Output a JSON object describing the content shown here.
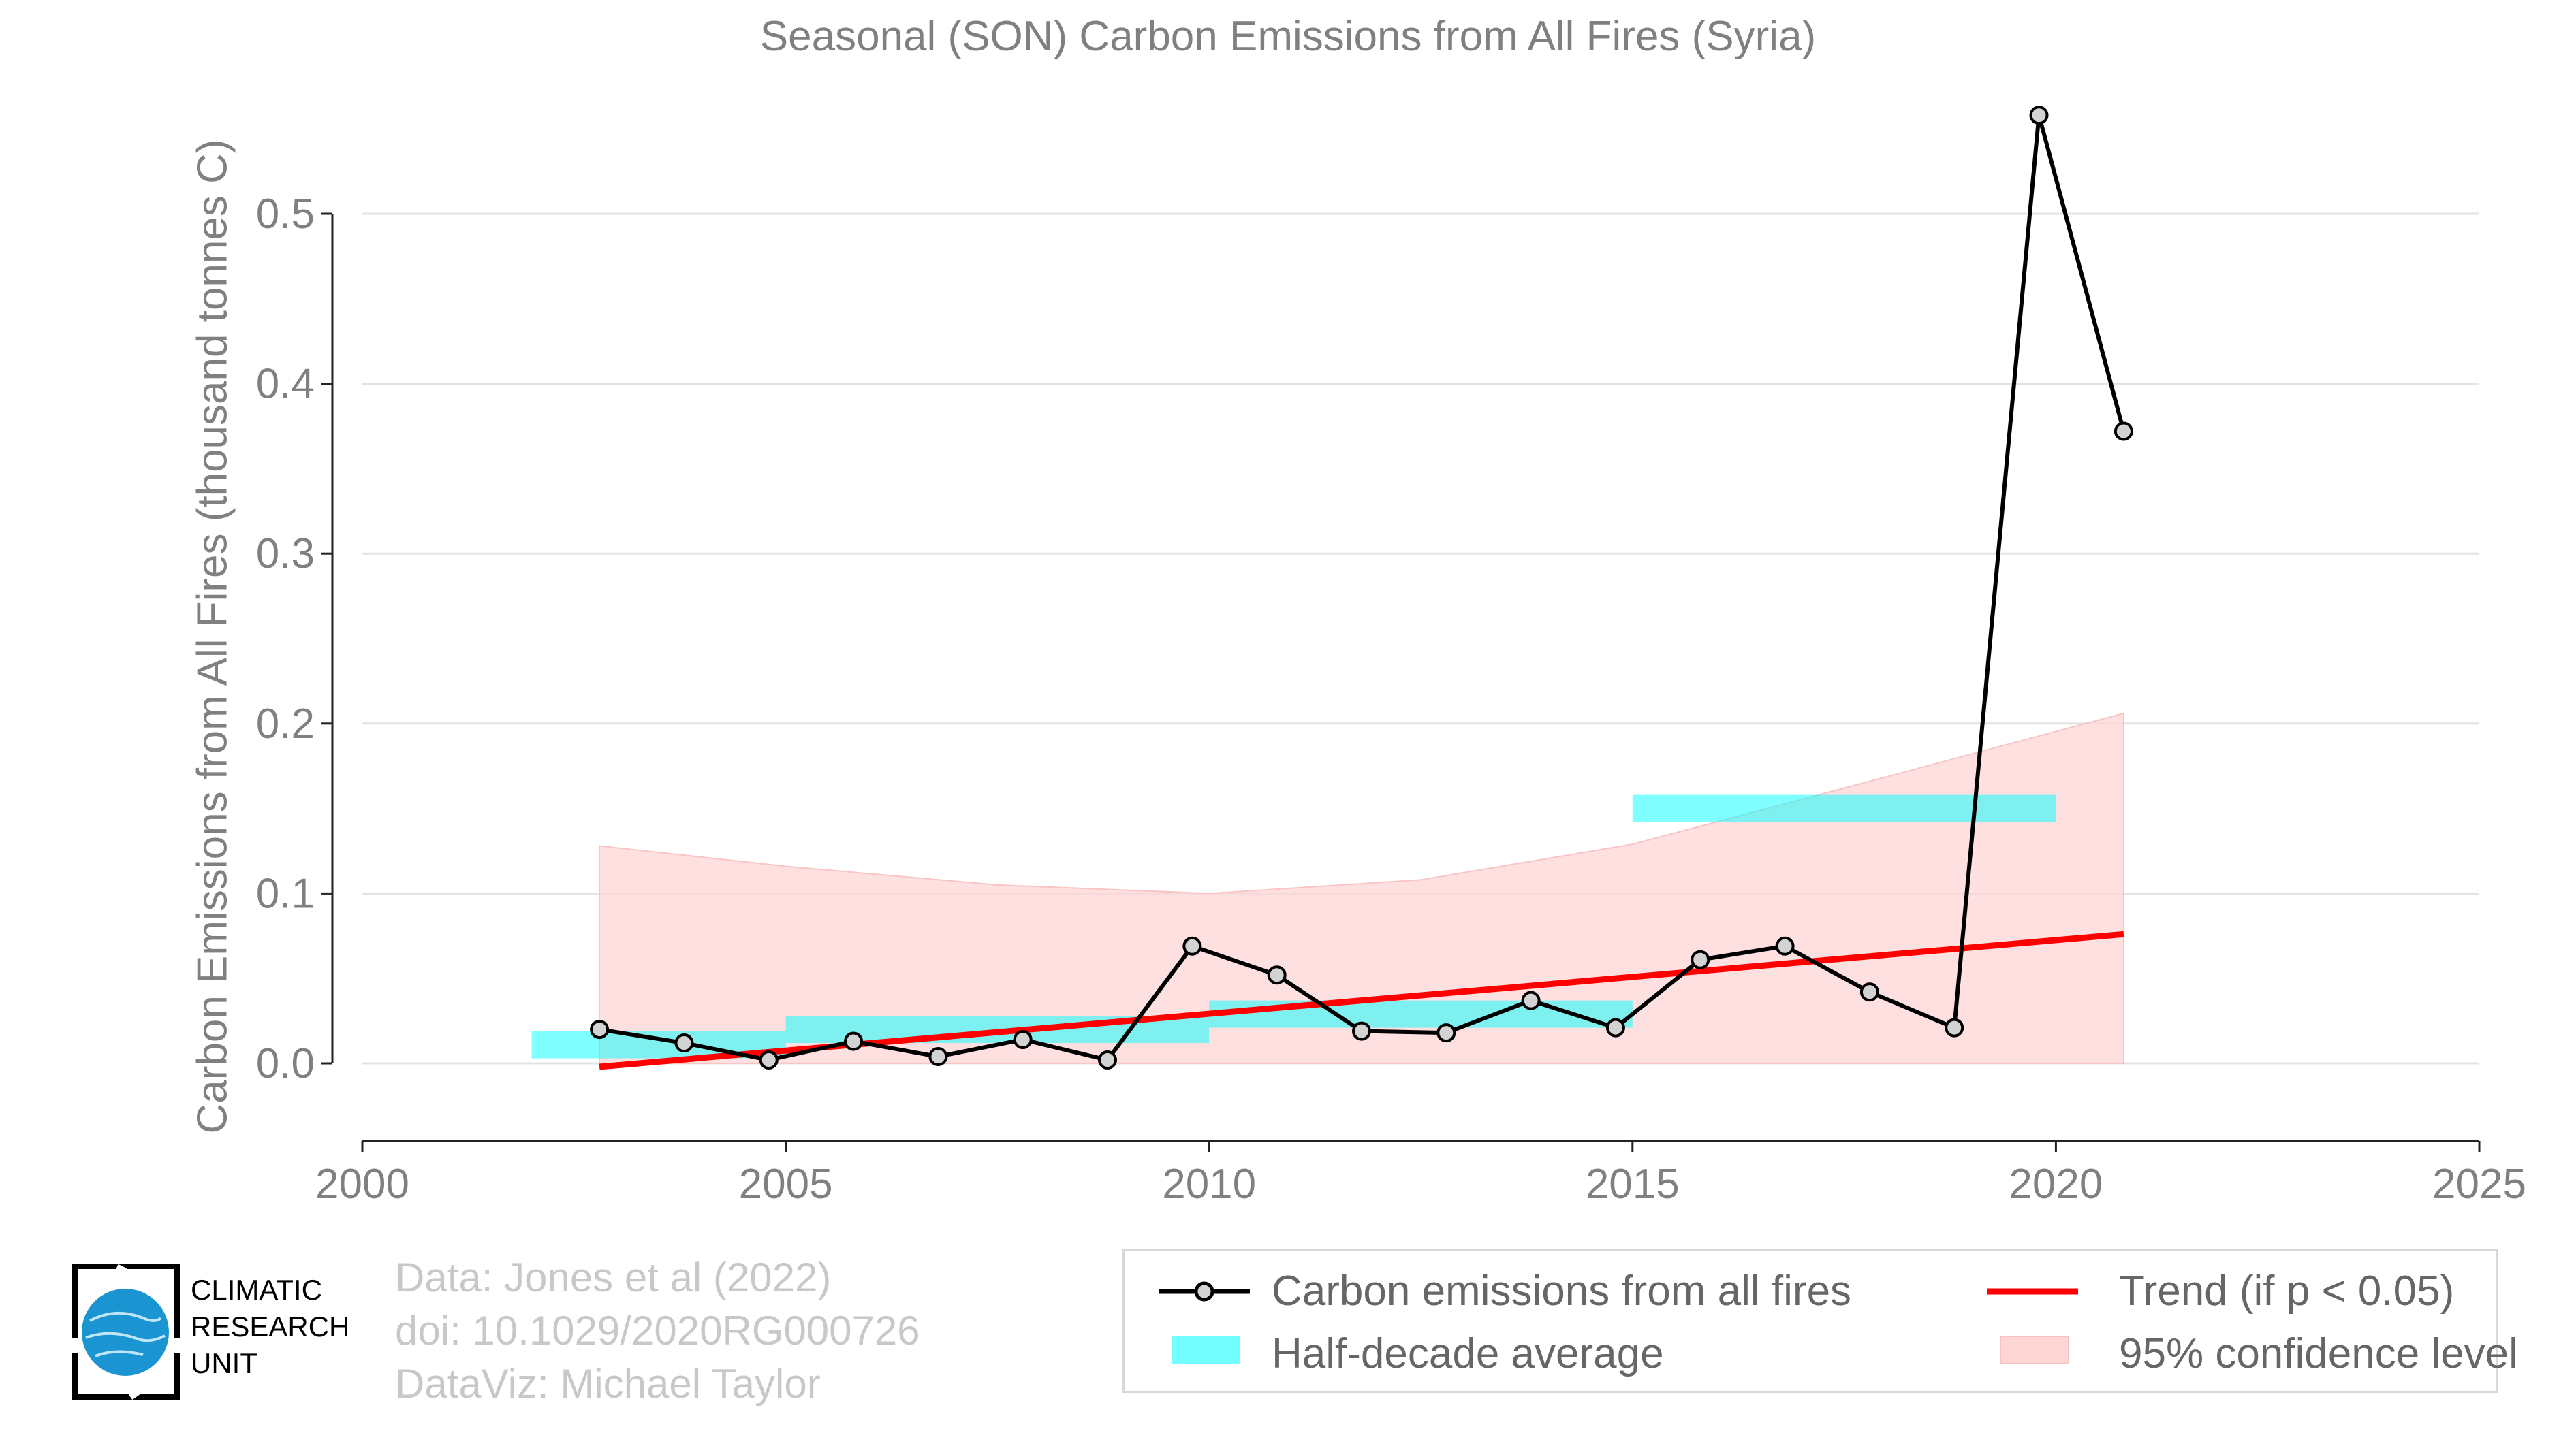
{
  "chart_data": {
    "type": "line",
    "title": "Seasonal (SON) Carbon Emissions from All Fires (Syria)",
    "xlabel": "",
    "ylabel": "Carbon Emissions from All Fires (thousand tonnes C)",
    "xlim": [
      2000,
      2025
    ],
    "ylim": [
      -0.045,
      0.57
    ],
    "xticks": [
      "2000",
      "2005",
      "2010",
      "2015",
      "2020",
      "2025"
    ],
    "yticks": [
      "0.0",
      "0.1",
      "0.2",
      "0.3",
      "0.4",
      "0.5"
    ],
    "grid": "horizontal",
    "series": [
      {
        "name": "Carbon emissions from all fires",
        "color": "#000000",
        "x": [
          2002.8,
          2003.8,
          2004.8,
          2005.8,
          2006.8,
          2007.8,
          2008.8,
          2009.8,
          2010.8,
          2011.8,
          2012.8,
          2013.8,
          2014.8,
          2015.8,
          2016.8,
          2017.8,
          2018.8,
          2019.8,
          2020.8
        ],
        "values": [
          0.02,
          0.012,
          0.002,
          0.013,
          0.004,
          0.014,
          0.002,
          0.069,
          0.052,
          0.019,
          0.018,
          0.037,
          0.021,
          0.061,
          0.069,
          0.042,
          0.021,
          0.558,
          0.372
        ]
      },
      {
        "name": "Half-decade average",
        "color": "#00ffff",
        "segments": [
          {
            "x0": 2002.0,
            "x1": 2005.0,
            "value": 0.011
          },
          {
            "x0": 2005.0,
            "x1": 2010.0,
            "value": 0.02
          },
          {
            "x0": 2010.0,
            "x1": 2015.0,
            "value": 0.029
          },
          {
            "x0": 2015.0,
            "x1": 2020.0,
            "value": 0.15
          }
        ]
      },
      {
        "name": "Trend (if p < 0.05)",
        "color": "#ff0000",
        "x": [
          2002.8,
          2020.8
        ],
        "values": [
          -0.002,
          0.076
        ]
      },
      {
        "name": "95% confidence level",
        "color": "#fdd5d5",
        "x": [
          2002.8,
          2005.0,
          2007.5,
          2010.0,
          2012.5,
          2015.0,
          2017.5,
          2020.8
        ],
        "upper": [
          0.128,
          0.116,
          0.105,
          0.1,
          0.108,
          0.129,
          0.162,
          0.206
        ],
        "lower": [
          0.0,
          0.0,
          0.0,
          0.0,
          0.0,
          0.0,
          0.0,
          0.0
        ]
      }
    ],
    "legend_position": "bottom-right"
  },
  "credits": {
    "line1": "Data: Jones et al (2022)",
    "line2": "doi: 10.1029/2020RG000726",
    "line3": "DataViz: Michael Taylor"
  },
  "logo": {
    "line1": "CLIMATIC",
    "line2": "RESEARCH",
    "line3": "UNIT"
  }
}
